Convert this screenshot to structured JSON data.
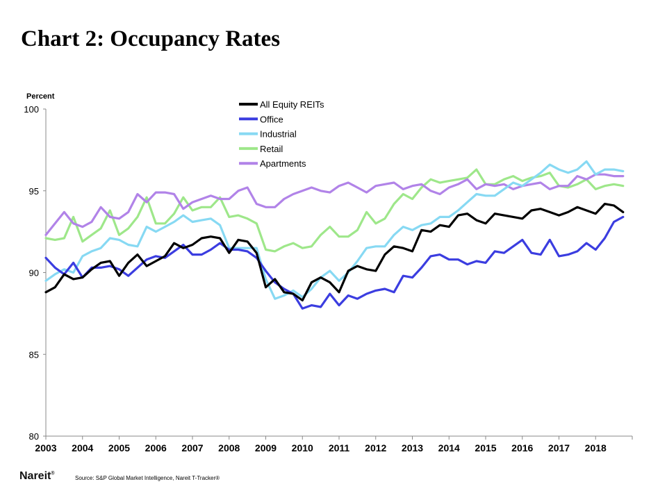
{
  "title": "Chart 2: Occupancy Rates",
  "logo": "Nareit",
  "logo_mark": "®",
  "source": "Source: S&P Global Market Intelligence, Nareit T-Tracker®",
  "chart_data": {
    "type": "line",
    "ylabel": "Percent",
    "ylim": [
      80,
      100
    ],
    "yticks": [
      80,
      85,
      90,
      95,
      100
    ],
    "xlim": [
      2003,
      2019
    ],
    "xticks": [
      "2003",
      "2004",
      "2005",
      "2006",
      "2007",
      "2008",
      "2009",
      "2010",
      "2011",
      "2012",
      "2013",
      "2014",
      "2015",
      "2016",
      "2017",
      "2018"
    ],
    "legend_position": "top-center",
    "x_start": 2003.0,
    "x_step": 0.25,
    "series": [
      {
        "name": "All Equity REITs",
        "color": "#000000",
        "values": [
          88.8,
          89.1,
          89.9,
          89.6,
          89.7,
          90.2,
          90.6,
          90.7,
          89.8,
          90.6,
          91.1,
          90.4,
          90.7,
          91.0,
          91.8,
          91.5,
          91.7,
          92.1,
          92.2,
          92.1,
          91.2,
          92.0,
          91.9,
          91.2,
          89.1,
          89.6,
          88.8,
          88.7,
          88.3,
          89.4,
          89.7,
          89.4,
          88.8,
          90.1,
          90.4,
          90.2,
          90.1,
          91.1,
          91.6,
          91.5,
          91.3,
          92.6,
          92.5,
          92.9,
          92.8,
          93.5,
          93.6,
          93.2,
          93.0,
          93.6,
          93.5,
          93.4,
          93.3,
          93.8,
          93.9,
          93.7,
          93.5,
          93.7,
          94.0,
          93.8,
          93.6,
          94.2,
          94.1,
          93.7
        ]
      },
      {
        "name": "Office",
        "color": "#3b3de0",
        "values": [
          90.9,
          90.3,
          89.9,
          90.6,
          89.7,
          90.3,
          90.3,
          90.4,
          90.2,
          89.8,
          90.3,
          90.8,
          91.0,
          90.9,
          91.3,
          91.7,
          91.1,
          91.1,
          91.4,
          91.8,
          91.4,
          91.4,
          91.3,
          90.9,
          90.1,
          89.4,
          89.0,
          88.7,
          87.8,
          88.0,
          87.9,
          88.7,
          88.0,
          88.6,
          88.4,
          88.7,
          88.9,
          89.0,
          88.8,
          89.8,
          89.7,
          90.3,
          91.0,
          91.1,
          90.8,
          90.8,
          90.5,
          90.7,
          90.6,
          91.3,
          91.2,
          91.6,
          92.0,
          91.2,
          91.1,
          92.0,
          91.0,
          91.1,
          91.3,
          91.8,
          91.4,
          92.1,
          93.1,
          93.4
        ]
      },
      {
        "name": "Industrial",
        "color": "#87d9f3",
        "values": [
          89.5,
          89.9,
          90.2,
          90.0,
          91.0,
          91.3,
          91.5,
          92.1,
          92.0,
          91.7,
          91.6,
          92.8,
          92.5,
          92.8,
          93.1,
          93.5,
          93.1,
          93.2,
          93.3,
          92.9,
          91.5,
          91.5,
          91.5,
          91.5,
          89.6,
          88.4,
          88.6,
          88.9,
          88.5,
          89.0,
          89.7,
          90.1,
          89.5,
          90.0,
          90.7,
          91.5,
          91.6,
          91.6,
          92.3,
          92.8,
          92.6,
          92.9,
          93.0,
          93.4,
          93.4,
          93.8,
          94.3,
          94.8,
          94.7,
          94.7,
          95.1,
          95.5,
          95.3,
          95.7,
          96.1,
          96.6,
          96.3,
          96.1,
          96.3,
          96.8,
          96.0,
          96.3,
          96.3,
          96.2
        ]
      },
      {
        "name": "Retail",
        "color": "#9ee78a",
        "values": [
          92.1,
          92.0,
          92.1,
          93.4,
          91.9,
          92.3,
          92.7,
          93.8,
          92.3,
          92.7,
          93.4,
          94.6,
          93.0,
          93.0,
          93.6,
          94.6,
          93.8,
          94.0,
          94.0,
          94.6,
          93.4,
          93.5,
          93.3,
          93.0,
          91.4,
          91.3,
          91.6,
          91.8,
          91.5,
          91.6,
          92.3,
          92.8,
          92.2,
          92.2,
          92.6,
          93.7,
          93.0,
          93.3,
          94.2,
          94.8,
          94.5,
          95.2,
          95.7,
          95.5,
          95.6,
          95.7,
          95.8,
          96.3,
          95.4,
          95.4,
          95.7,
          95.9,
          95.6,
          95.8,
          95.9,
          96.1,
          95.3,
          95.2,
          95.4,
          95.7,
          95.1,
          95.3,
          95.4,
          95.3
        ]
      },
      {
        "name": "Apartments",
        "color": "#b183e8",
        "values": [
          92.3,
          93.0,
          93.7,
          93.0,
          92.8,
          93.1,
          94.0,
          93.4,
          93.3,
          93.7,
          94.8,
          94.3,
          94.9,
          94.9,
          94.8,
          93.9,
          94.3,
          94.5,
          94.7,
          94.5,
          94.5,
          95.0,
          95.2,
          94.2,
          94.0,
          94.0,
          94.5,
          94.8,
          95.0,
          95.2,
          95.0,
          94.9,
          95.3,
          95.5,
          95.2,
          94.9,
          95.3,
          95.4,
          95.5,
          95.1,
          95.3,
          95.4,
          95.0,
          94.8,
          95.2,
          95.4,
          95.7,
          95.1,
          95.4,
          95.3,
          95.4,
          95.1,
          95.3,
          95.4,
          95.5,
          95.1,
          95.3,
          95.3,
          95.9,
          95.7,
          96.0,
          96.0,
          95.9,
          95.9
        ]
      }
    ]
  }
}
